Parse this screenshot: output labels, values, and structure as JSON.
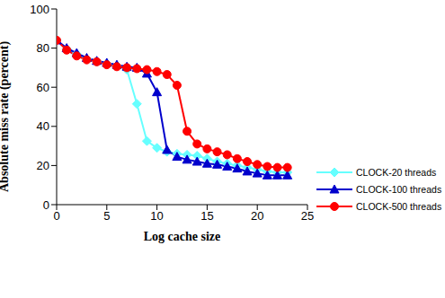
{
  "chart_data": {
    "type": "line",
    "x_label": "Log cache size",
    "y_label": "Absolute miss rate (percent)",
    "x": [
      0,
      1,
      2,
      3,
      4,
      5,
      6,
      7,
      8,
      9,
      10,
      11,
      12,
      13,
      14,
      15,
      16,
      17,
      18,
      19,
      20,
      21,
      22,
      23
    ],
    "xlim": [
      0,
      25
    ],
    "xticks": [
      0,
      5,
      10,
      15,
      20,
      25
    ],
    "ylim": [
      0,
      100
    ],
    "yticks": [
      0,
      20,
      40,
      60,
      80,
      100
    ],
    "grid": false,
    "legend": "right",
    "series": [
      {
        "name": "CLOCK-20 threads",
        "color": "#66ffff",
        "marker": "diamond",
        "values": [
          84,
          79.5,
          77,
          74.5,
          73,
          72,
          71,
          69,
          51.5,
          32.5,
          29,
          27,
          26,
          25.5,
          25,
          23.5,
          22,
          21,
          20,
          19,
          18,
          17,
          16.5,
          16.5
        ]
      },
      {
        "name": "CLOCK-100 threads",
        "color": "#0000cc",
        "marker": "triangle",
        "values": [
          84,
          80,
          77.5,
          75,
          73.5,
          72.5,
          71.5,
          70.5,
          70,
          67,
          57.5,
          28,
          24.5,
          23,
          22,
          21,
          20.5,
          19.5,
          18.5,
          17,
          16,
          15,
          15,
          15
        ]
      },
      {
        "name": "CLOCK-500 threads",
        "color": "#ff0000",
        "marker": "circle",
        "values": [
          84,
          79,
          76,
          74,
          73,
          71.5,
          70.5,
          70,
          69.5,
          69,
          68,
          66.5,
          61,
          37.5,
          31,
          28.5,
          27,
          25.5,
          23.5,
          22,
          20.5,
          19.5,
          19,
          19
        ]
      }
    ]
  }
}
